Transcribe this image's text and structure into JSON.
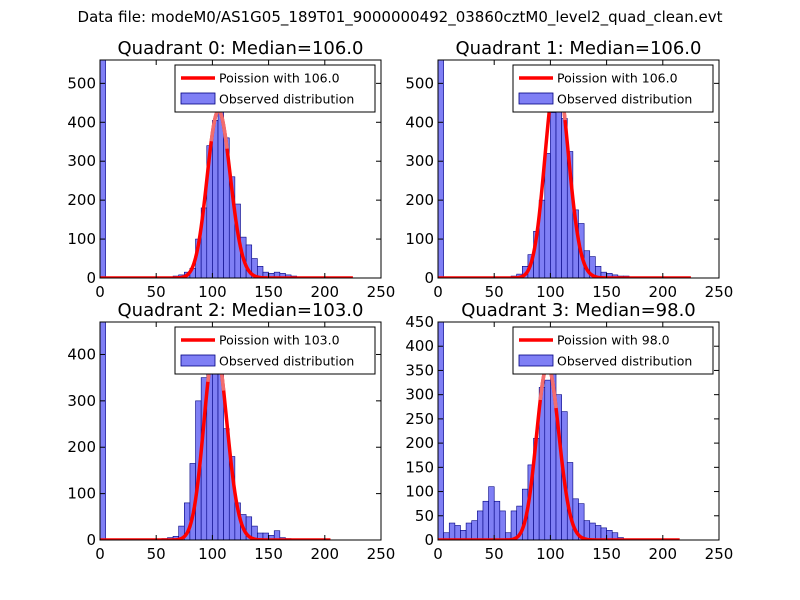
{
  "figure": {
    "suptitle": "Data file: modeM0/AS1G05_189T01_9000000492_03860cztM0_level2_quad_clean.evt"
  },
  "colors": {
    "bar_fill": "#7f7ff5",
    "bar_edge": "#000080",
    "curve": "#ff0000",
    "curve_peak": "#f08080",
    "axis": "#000000"
  },
  "chart_data": [
    {
      "type": "bar",
      "title": "Quadrant 0: Median=106.0",
      "xlim": [
        0,
        250
      ],
      "ylim": [
        0,
        560
      ],
      "xticks": [
        0,
        50,
        100,
        150,
        200,
        250
      ],
      "yticks": [
        0,
        100,
        200,
        300,
        400,
        500
      ],
      "bin_width": 5,
      "bins": [
        {
          "x": 0,
          "y": 560
        },
        {
          "x": 65,
          "y": 5
        },
        {
          "x": 70,
          "y": 8
        },
        {
          "x": 75,
          "y": 15
        },
        {
          "x": 80,
          "y": 25
        },
        {
          "x": 85,
          "y": 100
        },
        {
          "x": 90,
          "y": 180
        },
        {
          "x": 95,
          "y": 340
        },
        {
          "x": 100,
          "y": 405
        },
        {
          "x": 105,
          "y": 430
        },
        {
          "x": 110,
          "y": 360
        },
        {
          "x": 115,
          "y": 260
        },
        {
          "x": 120,
          "y": 190
        },
        {
          "x": 125,
          "y": 105
        },
        {
          "x": 130,
          "y": 85
        },
        {
          "x": 135,
          "y": 50
        },
        {
          "x": 140,
          "y": 30
        },
        {
          "x": 145,
          "y": 15
        },
        {
          "x": 150,
          "y": 12
        },
        {
          "x": 155,
          "y": 15
        },
        {
          "x": 160,
          "y": 12
        },
        {
          "x": 165,
          "y": 8
        },
        {
          "x": 170,
          "y": 5
        },
        {
          "x": 175,
          "y": 3
        }
      ],
      "poisson_mean": 106.0,
      "curve_range": [
        0,
        225
      ],
      "legend": [
        "Poission with 106.0",
        "Observed distribution"
      ]
    },
    {
      "type": "bar",
      "title": "Quadrant 1: Median=106.0",
      "xlim": [
        0,
        250
      ],
      "ylim": [
        0,
        560
      ],
      "xticks": [
        0,
        50,
        100,
        150,
        200,
        250
      ],
      "yticks": [
        0,
        100,
        200,
        300,
        400,
        500
      ],
      "bin_width": 5,
      "bins": [
        {
          "x": 0,
          "y": 560
        },
        {
          "x": 65,
          "y": 5
        },
        {
          "x": 70,
          "y": 10
        },
        {
          "x": 75,
          "y": 30
        },
        {
          "x": 80,
          "y": 60
        },
        {
          "x": 85,
          "y": 120
        },
        {
          "x": 90,
          "y": 200
        },
        {
          "x": 95,
          "y": 320
        },
        {
          "x": 100,
          "y": 425
        },
        {
          "x": 105,
          "y": 525
        },
        {
          "x": 110,
          "y": 410
        },
        {
          "x": 115,
          "y": 325
        },
        {
          "x": 120,
          "y": 175
        },
        {
          "x": 125,
          "y": 140
        },
        {
          "x": 130,
          "y": 70
        },
        {
          "x": 135,
          "y": 55
        },
        {
          "x": 140,
          "y": 30
        },
        {
          "x": 145,
          "y": 15
        },
        {
          "x": 150,
          "y": 12
        },
        {
          "x": 155,
          "y": 8
        },
        {
          "x": 160,
          "y": 5
        },
        {
          "x": 165,
          "y": 5
        }
      ],
      "poisson_mean": 106.0,
      "curve_range": [
        0,
        225
      ],
      "legend": [
        "Poission with 106.0",
        "Observed distribution"
      ]
    },
    {
      "type": "bar",
      "title": "Quadrant 2: Median=103.0",
      "xlim": [
        0,
        250
      ],
      "ylim": [
        0,
        470
      ],
      "xticks": [
        0,
        50,
        100,
        150,
        200,
        250
      ],
      "yticks": [
        0,
        100,
        200,
        300,
        400
      ],
      "bin_width": 5,
      "bins": [
        {
          "x": 0,
          "y": 470
        },
        {
          "x": 55,
          "y": 3
        },
        {
          "x": 60,
          "y": 5
        },
        {
          "x": 65,
          "y": 8
        },
        {
          "x": 70,
          "y": 30
        },
        {
          "x": 75,
          "y": 80
        },
        {
          "x": 80,
          "y": 165
        },
        {
          "x": 85,
          "y": 300
        },
        {
          "x": 90,
          "y": 350
        },
        {
          "x": 95,
          "y": 380
        },
        {
          "x": 100,
          "y": 420
        },
        {
          "x": 105,
          "y": 385
        },
        {
          "x": 110,
          "y": 240
        },
        {
          "x": 115,
          "y": 180
        },
        {
          "x": 120,
          "y": 80
        },
        {
          "x": 125,
          "y": 55
        },
        {
          "x": 130,
          "y": 50
        },
        {
          "x": 135,
          "y": 30
        },
        {
          "x": 140,
          "y": 15
        },
        {
          "x": 145,
          "y": 15
        },
        {
          "x": 150,
          "y": 10
        },
        {
          "x": 155,
          "y": 20
        },
        {
          "x": 160,
          "y": 5
        },
        {
          "x": 165,
          "y": 3
        }
      ],
      "poisson_mean": 103.0,
      "curve_range": [
        0,
        205
      ],
      "legend": [
        "Poission with 103.0",
        "Observed distribution"
      ]
    },
    {
      "type": "bar",
      "title": "Quadrant 3: Median=98.0",
      "xlim": [
        0,
        250
      ],
      "ylim": [
        0,
        450
      ],
      "xticks": [
        0,
        50,
        100,
        150,
        200,
        250
      ],
      "yticks": [
        0,
        50,
        100,
        150,
        200,
        250,
        300,
        350,
        400,
        450
      ],
      "bin_width": 5,
      "bins": [
        {
          "x": 0,
          "y": 450
        },
        {
          "x": 5,
          "y": 15
        },
        {
          "x": 10,
          "y": 35
        },
        {
          "x": 15,
          "y": 30
        },
        {
          "x": 20,
          "y": 20
        },
        {
          "x": 25,
          "y": 35
        },
        {
          "x": 30,
          "y": 40
        },
        {
          "x": 35,
          "y": 60
        },
        {
          "x": 40,
          "y": 80
        },
        {
          "x": 45,
          "y": 110
        },
        {
          "x": 50,
          "y": 80
        },
        {
          "x": 55,
          "y": 60
        },
        {
          "x": 60,
          "y": 15
        },
        {
          "x": 65,
          "y": 60
        },
        {
          "x": 70,
          "y": 70
        },
        {
          "x": 75,
          "y": 105
        },
        {
          "x": 80,
          "y": 155
        },
        {
          "x": 85,
          "y": 210
        },
        {
          "x": 90,
          "y": 315
        },
        {
          "x": 95,
          "y": 330
        },
        {
          "x": 100,
          "y": 360
        },
        {
          "x": 105,
          "y": 300
        },
        {
          "x": 110,
          "y": 265
        },
        {
          "x": 115,
          "y": 160
        },
        {
          "x": 120,
          "y": 85
        },
        {
          "x": 125,
          "y": 75
        },
        {
          "x": 130,
          "y": 40
        },
        {
          "x": 135,
          "y": 35
        },
        {
          "x": 140,
          "y": 30
        },
        {
          "x": 145,
          "y": 25
        },
        {
          "x": 150,
          "y": 20
        },
        {
          "x": 155,
          "y": 15
        },
        {
          "x": 160,
          "y": 5
        }
      ],
      "poisson_mean": 98.0,
      "curve_range": [
        0,
        215
      ],
      "legend": [
        "Poission with 98.0",
        "Observed distribution"
      ]
    }
  ]
}
